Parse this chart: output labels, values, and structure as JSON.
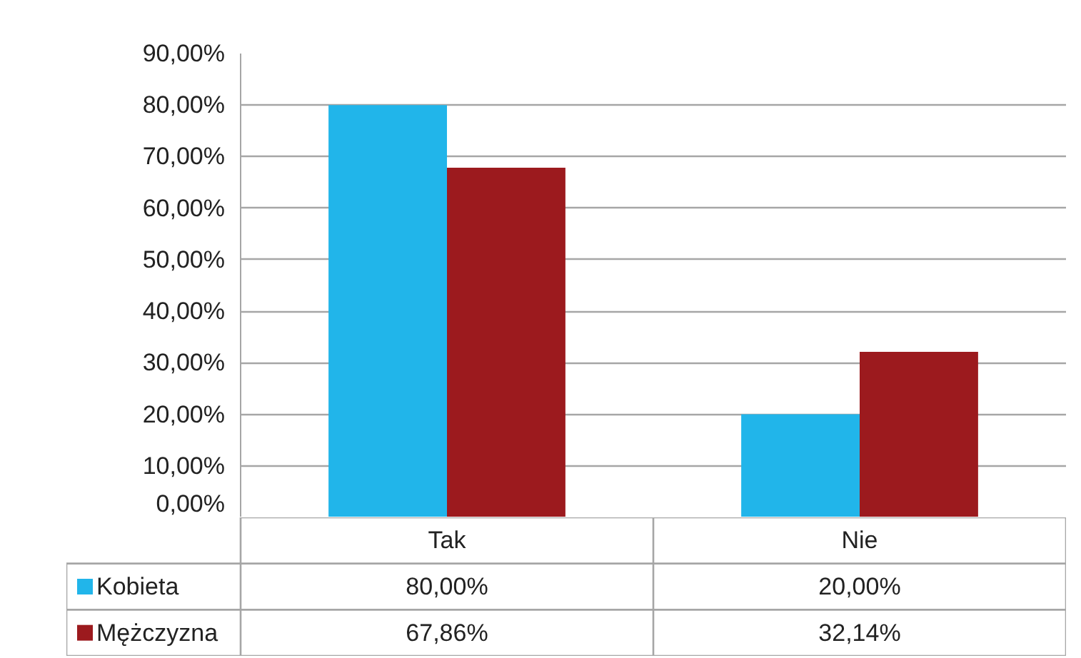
{
  "chart_data": {
    "type": "bar",
    "categories": [
      "Tak",
      "Nie"
    ],
    "series": [
      {
        "name": "Kobieta",
        "color": "#21b5ea",
        "values": [
          80,
          20
        ],
        "value_labels": [
          "80,00%",
          "20,00%"
        ]
      },
      {
        "name": "Mężczyzna",
        "color": "#9c1a1e",
        "values": [
          67.86,
          32.14
        ],
        "value_labels": [
          "67,86%",
          "32,14%"
        ]
      }
    ],
    "ylim": [
      0,
      90
    ],
    "yticks": [
      {
        "value": 0,
        "label": "0,00%"
      },
      {
        "value": 10,
        "label": "10,00%"
      },
      {
        "value": 20,
        "label": "20,00%"
      },
      {
        "value": 30,
        "label": "30,00%"
      },
      {
        "value": 40,
        "label": "40,00%"
      },
      {
        "value": 50,
        "label": "50,00%"
      },
      {
        "value": 60,
        "label": "60,00%"
      },
      {
        "value": 70,
        "label": "70,00%"
      },
      {
        "value": 80,
        "label": "80,00%"
      },
      {
        "value": 90,
        "label": "90,00%"
      }
    ],
    "grid": "y",
    "legend": "bottom"
  }
}
